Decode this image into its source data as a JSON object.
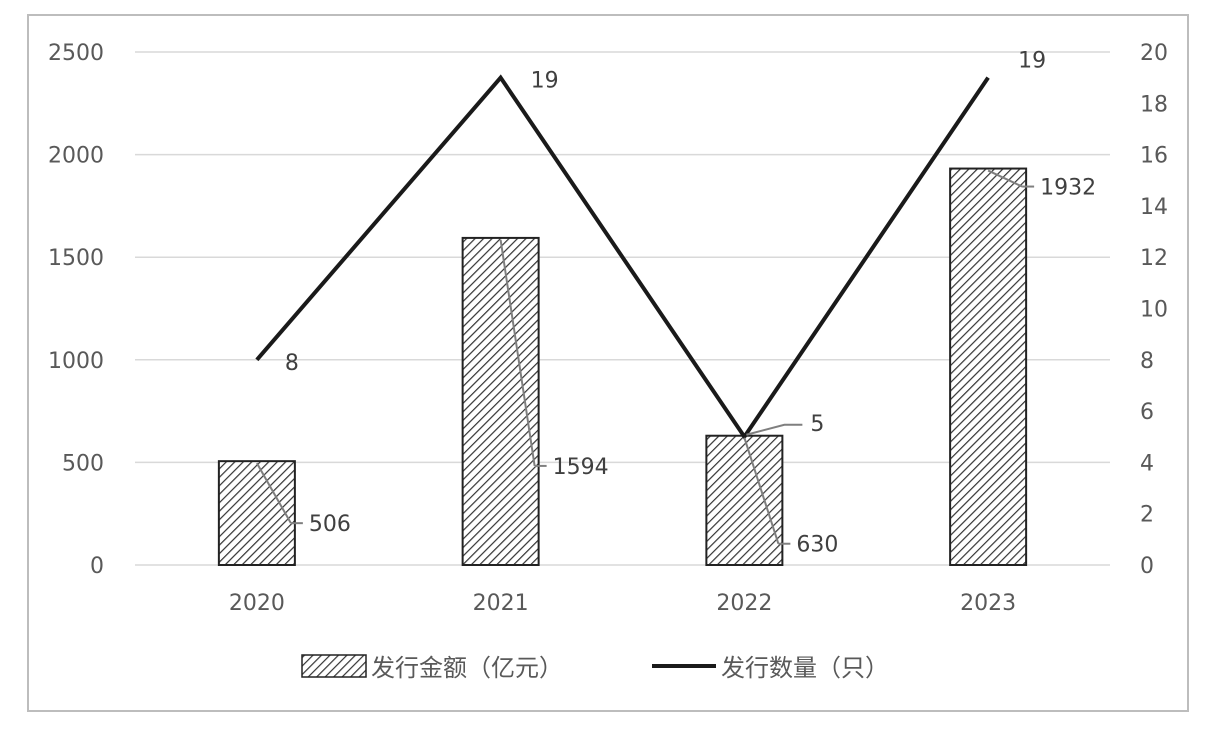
{
  "chart_data": {
    "type": "bar+line",
    "categories": [
      "2020",
      "2021",
      "2022",
      "2023"
    ],
    "series": [
      {
        "name": "发行金额（亿元）",
        "type": "bar",
        "axis": "left",
        "values": [
          506,
          1594,
          630,
          1932
        ],
        "labels": [
          "506",
          "1594",
          "630",
          "1932"
        ],
        "pattern": "diagonal-hatch"
      },
      {
        "name": "发行数量（只）",
        "type": "line",
        "axis": "right",
        "values": [
          8,
          19,
          5,
          19
        ],
        "labels": [
          "8",
          "19",
          "5",
          "19"
        ],
        "color": "#1a1a1a"
      }
    ],
    "y_left": {
      "min": 0,
      "max": 2500,
      "ticks": [
        "0",
        "500",
        "1000",
        "1500",
        "2000",
        "2500"
      ]
    },
    "y_right": {
      "min": 0,
      "max": 20,
      "ticks": [
        "0",
        "2",
        "4",
        "6",
        "8",
        "10",
        "12",
        "14",
        "16",
        "18",
        "20"
      ]
    },
    "grid": true,
    "legend_position": "bottom",
    "title": "",
    "xlabel": "",
    "ylabel": ""
  }
}
